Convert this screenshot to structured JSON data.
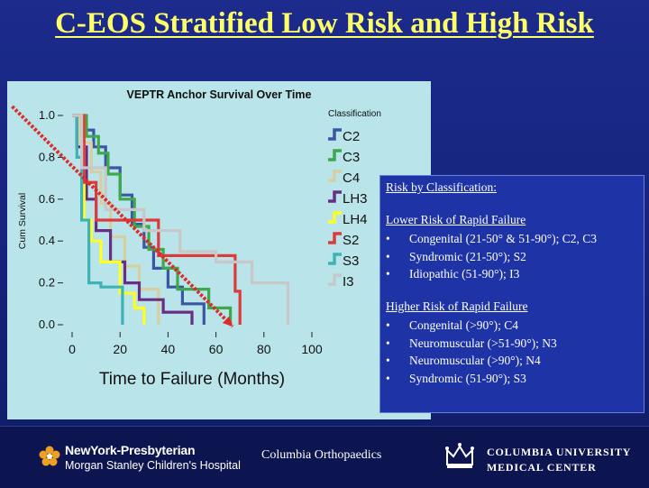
{
  "slide": {
    "title": "C-EOS Stratified Low Risk and High Risk"
  },
  "chart_data": {
    "type": "line",
    "title": "VEPTR Anchor Survival Over Time",
    "xlabel": "Time to Failure (Months)",
    "ylabel": "Cum Survival",
    "xlim": [
      0,
      100
    ],
    "ylim": [
      0,
      1
    ],
    "x_ticks": [
      "0",
      "20",
      "40",
      "60",
      "80",
      "100"
    ],
    "y_ticks": [
      "0.0",
      "0.2",
      "0.4",
      "0.6",
      "0.8",
      "1.0"
    ],
    "legend_title": "Classification",
    "legend_position": "right",
    "series": [
      {
        "name": "C2",
        "color": "#3c56a5",
        "points": [
          [
            0,
            1.0
          ],
          [
            4,
            1.0
          ],
          [
            4,
            0.93
          ],
          [
            9,
            0.93
          ],
          [
            9,
            0.85
          ],
          [
            14,
            0.85
          ],
          [
            14,
            0.75
          ],
          [
            20,
            0.75
          ],
          [
            20,
            0.62
          ],
          [
            25,
            0.62
          ],
          [
            25,
            0.48
          ],
          [
            30,
            0.48
          ],
          [
            30,
            0.37
          ],
          [
            34,
            0.37
          ],
          [
            34,
            0.27
          ],
          [
            40,
            0.27
          ],
          [
            40,
            0.18
          ],
          [
            46,
            0.18
          ],
          [
            46,
            0.1
          ],
          [
            55,
            0.1
          ],
          [
            55,
            0.0
          ]
        ]
      },
      {
        "name": "C3",
        "color": "#3caa4a",
        "points": [
          [
            0,
            1.0
          ],
          [
            6,
            1.0
          ],
          [
            6,
            0.9
          ],
          [
            11,
            0.9
          ],
          [
            11,
            0.82
          ],
          [
            15,
            0.82
          ],
          [
            15,
            0.72
          ],
          [
            20,
            0.72
          ],
          [
            20,
            0.6
          ],
          [
            26,
            0.6
          ],
          [
            26,
            0.47
          ],
          [
            32,
            0.47
          ],
          [
            32,
            0.36
          ],
          [
            38,
            0.36
          ],
          [
            38,
            0.27
          ],
          [
            44,
            0.27
          ],
          [
            44,
            0.17
          ],
          [
            57,
            0.17
          ],
          [
            57,
            0.08
          ],
          [
            66,
            0.08
          ],
          [
            66,
            0.0
          ]
        ]
      },
      {
        "name": "C4",
        "color": "#d8cfa0",
        "points": [
          [
            0,
            1.0
          ],
          [
            3,
            1.0
          ],
          [
            3,
            0.87
          ],
          [
            8,
            0.87
          ],
          [
            8,
            0.73
          ],
          [
            12,
            0.73
          ],
          [
            12,
            0.58
          ],
          [
            16,
            0.58
          ],
          [
            16,
            0.42
          ],
          [
            22,
            0.42
          ],
          [
            22,
            0.28
          ],
          [
            28,
            0.28
          ],
          [
            28,
            0.17
          ],
          [
            36,
            0.17
          ],
          [
            36,
            0.0
          ]
        ]
      },
      {
        "name": "LH3",
        "color": "#6a2d85",
        "points": [
          [
            0,
            1.0
          ],
          [
            2,
            1.0
          ],
          [
            2,
            0.85
          ],
          [
            6,
            0.85
          ],
          [
            6,
            0.6
          ],
          [
            10,
            0.6
          ],
          [
            10,
            0.45
          ],
          [
            16,
            0.45
          ],
          [
            16,
            0.3
          ],
          [
            22,
            0.3
          ],
          [
            22,
            0.2
          ],
          [
            28,
            0.2
          ],
          [
            28,
            0.12
          ],
          [
            38,
            0.12
          ],
          [
            38,
            0.06
          ],
          [
            50,
            0.06
          ],
          [
            50,
            0.0
          ]
        ]
      },
      {
        "name": "LH4",
        "color": "#ffff22",
        "points": [
          [
            0,
            1.0
          ],
          [
            5,
            1.0
          ],
          [
            5,
            0.5
          ],
          [
            8,
            0.5
          ],
          [
            8,
            0.4
          ],
          [
            12,
            0.4
          ],
          [
            12,
            0.3
          ],
          [
            20,
            0.3
          ],
          [
            20,
            0.15
          ],
          [
            26,
            0.15
          ],
          [
            26,
            0.08
          ],
          [
            30,
            0.08
          ],
          [
            30,
            0.0
          ]
        ]
      },
      {
        "name": "S2",
        "color": "#dd3a3a",
        "points": [
          [
            0,
            1.0
          ],
          [
            5,
            1.0
          ],
          [
            5,
            0.68
          ],
          [
            10,
            0.68
          ],
          [
            10,
            0.5
          ],
          [
            36,
            0.5
          ],
          [
            36,
            0.33
          ],
          [
            68,
            0.33
          ],
          [
            68,
            0.16
          ],
          [
            70,
            0.16
          ],
          [
            70,
            0.0
          ]
        ]
      },
      {
        "name": "S3",
        "color": "#3fb2b6",
        "points": [
          [
            0,
            1.0
          ],
          [
            2,
            1.0
          ],
          [
            2,
            0.8
          ],
          [
            4,
            0.8
          ],
          [
            4,
            0.5
          ],
          [
            7,
            0.5
          ],
          [
            7,
            0.2
          ],
          [
            12,
            0.2
          ],
          [
            12,
            0.18
          ],
          [
            21,
            0.18
          ],
          [
            21,
            0.0
          ]
        ]
      },
      {
        "name": "I3",
        "color": "#c8c8c8",
        "points": [
          [
            0,
            1.0
          ],
          [
            4,
            1.0
          ],
          [
            4,
            0.75
          ],
          [
            14,
            0.75
          ],
          [
            14,
            0.55
          ],
          [
            30,
            0.55
          ],
          [
            30,
            0.45
          ],
          [
            45,
            0.45
          ],
          [
            45,
            0.35
          ],
          [
            60,
            0.35
          ],
          [
            60,
            0.3
          ],
          [
            75,
            0.3
          ],
          [
            75,
            0.2
          ],
          [
            90,
            0.2
          ],
          [
            90,
            0.0
          ]
        ]
      }
    ],
    "trend_arrow": {
      "color": "#dd2a2a",
      "from": [
        -25,
        1.0
      ],
      "to": [
        67,
        0.0
      ]
    }
  },
  "info_box": {
    "heading": "Risk by Classification:",
    "low_heading": "Lower Risk of Rapid Failure",
    "low_items": [
      {
        "bullet": "•",
        "text": "Congenital (21-50° & 51-90°); C2, C3"
      },
      {
        "bullet": "•",
        "text": "Syndromic (21-50°); S2"
      },
      {
        "bullet": "•",
        "text": "Idiopathic (51-90°); I3"
      }
    ],
    "high_heading": "Higher Risk of Rapid Failure",
    "high_items": [
      {
        "bullet": "•",
        "text": "Congenital (>90°); C4"
      },
      {
        "bullet": "•",
        "text": "Neuromuscular (>51-90°); N3"
      },
      {
        "bullet": "•",
        "text": "Neuromuscular (>90°); N4"
      },
      {
        "bullet": "•",
        "text": "Syndromic (51-90°); S3"
      }
    ]
  },
  "footer": {
    "nyp_line1": "NewYork-Presbyterian",
    "nyp_line2": "Morgan Stanley Children's Hospital",
    "ortho": "Columbia Orthopaedics",
    "cu_line1": "COLUMBIA UNIVERSITY",
    "cu_line2": "MEDICAL CENTER",
    "nyp_logo_icon": "flower-logo-icon",
    "cu_logo_icon": "crown-logo-icon"
  }
}
